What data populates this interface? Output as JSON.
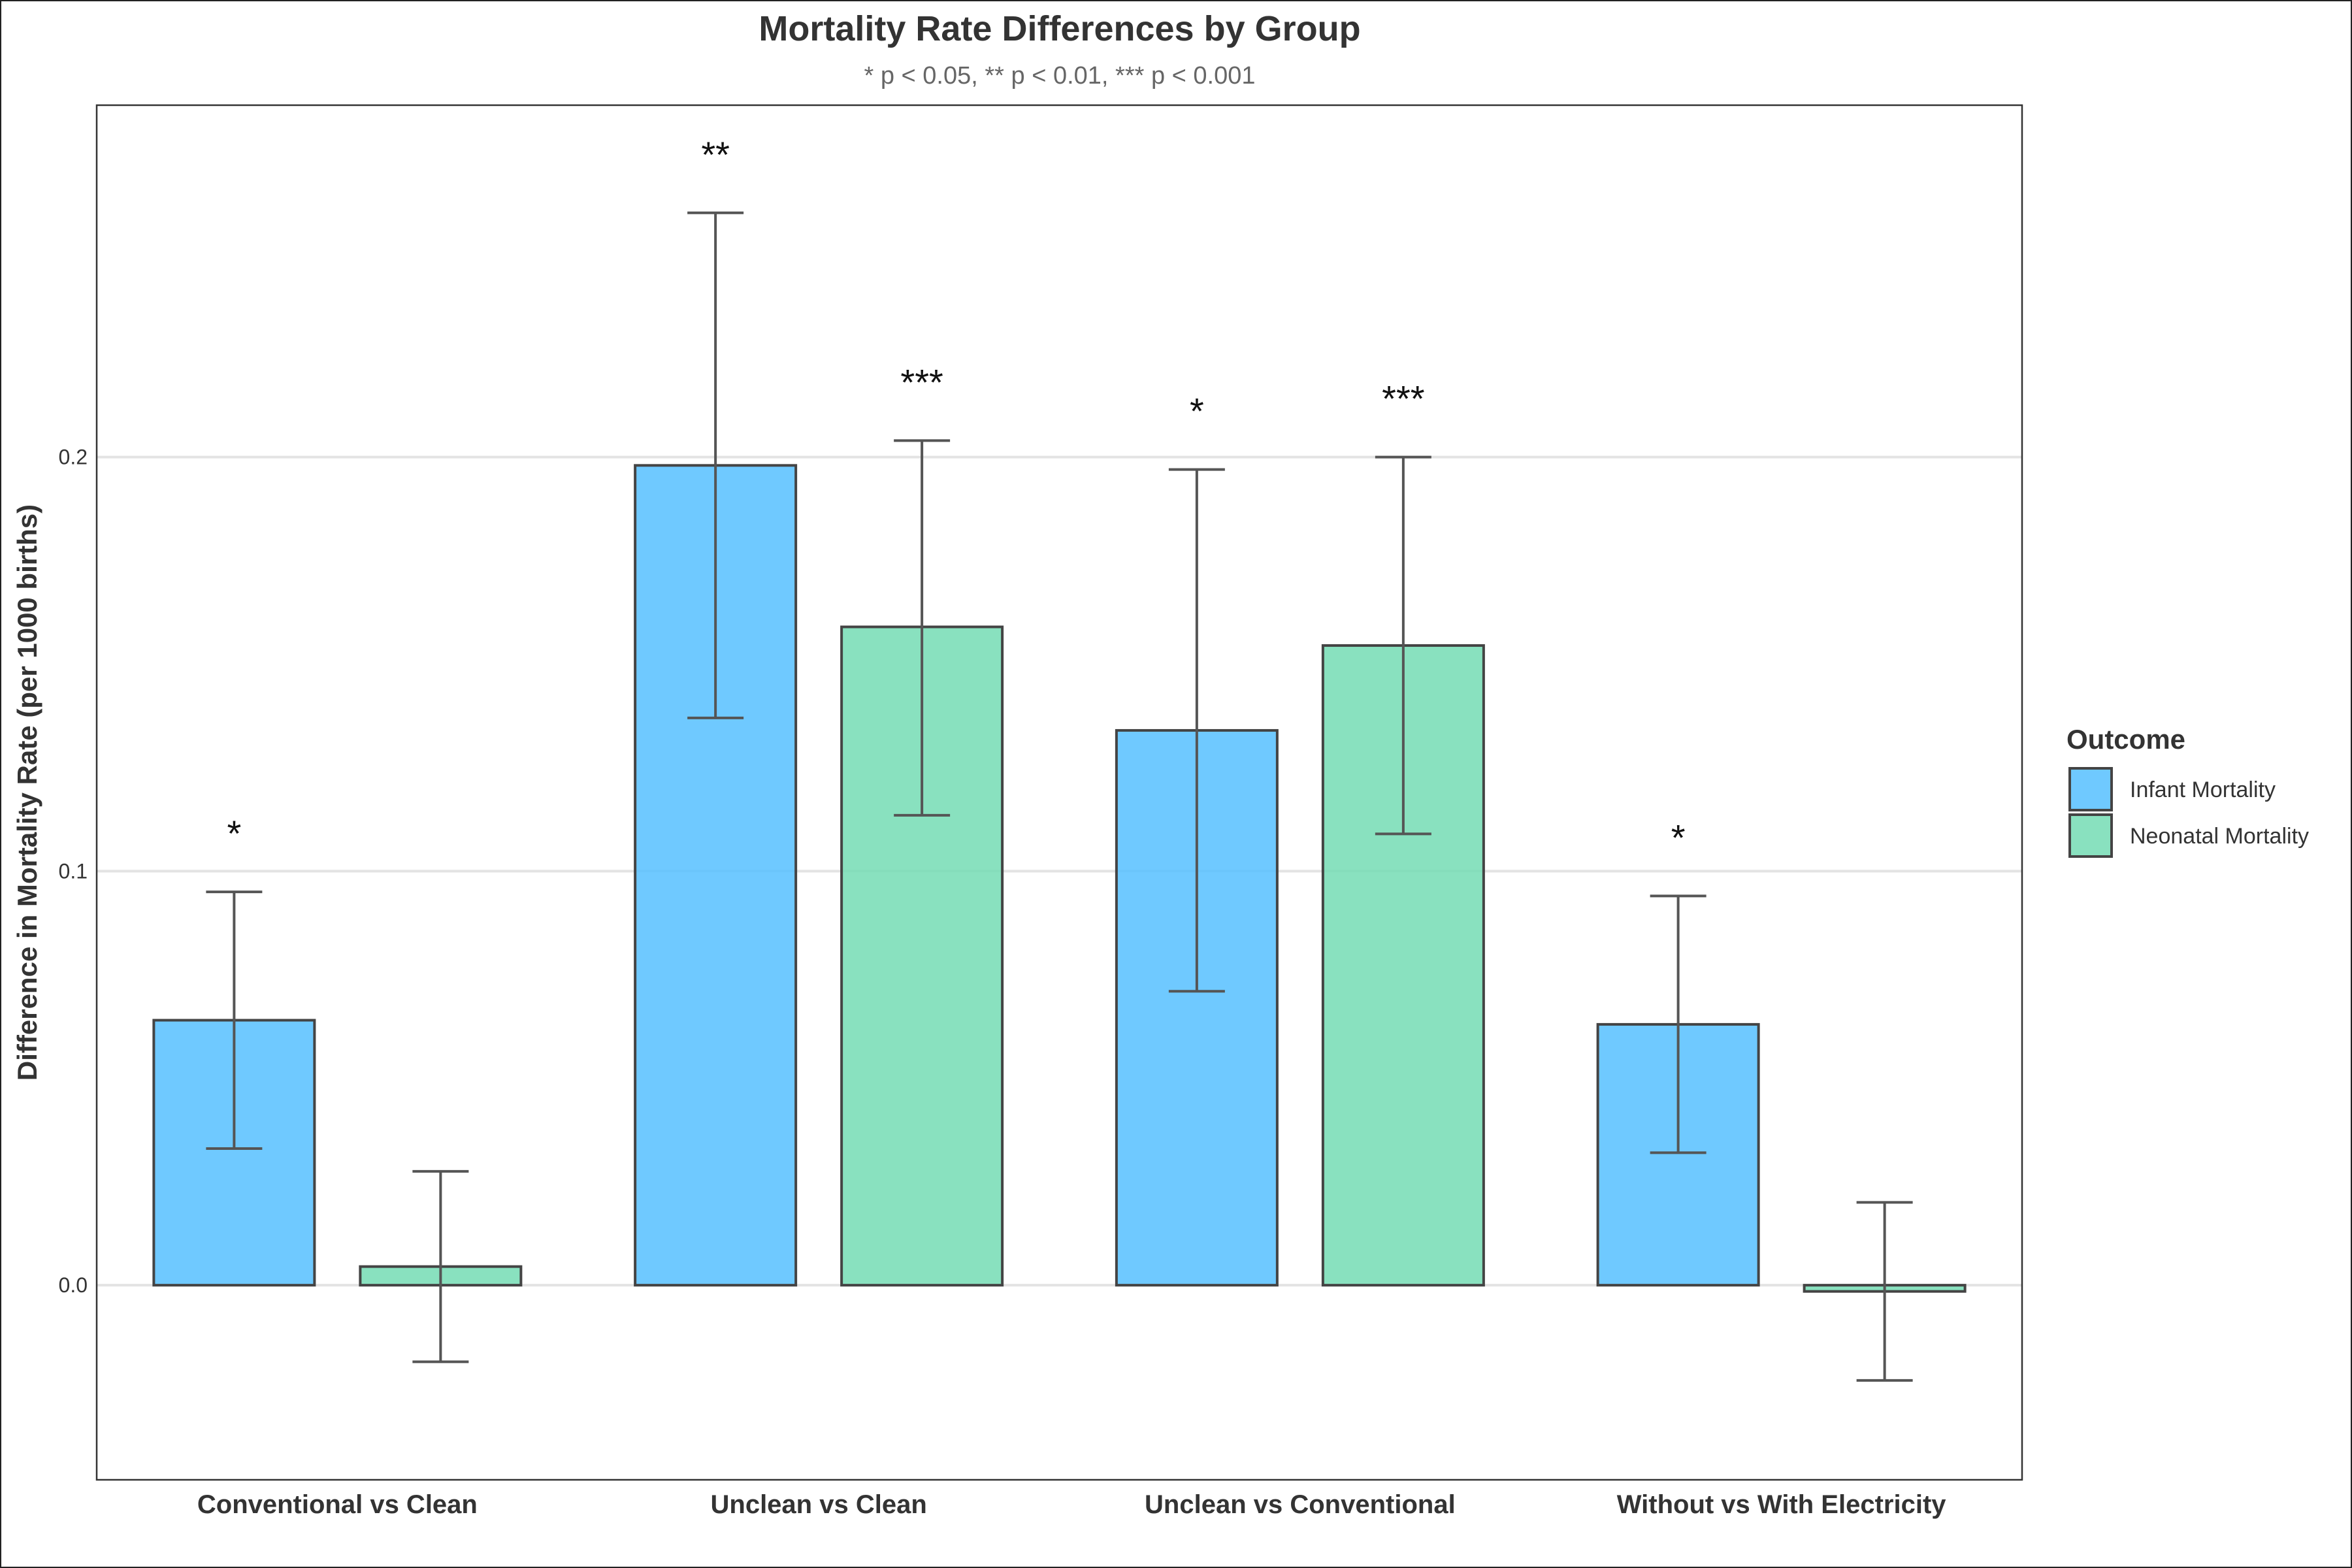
{
  "chart_data": {
    "type": "bar",
    "title": "Mortality Rate Differences by Group",
    "subtitle": "* p < 0.05, ** p < 0.01, *** p < 0.001",
    "xlabel": "",
    "ylabel": "Difference in Mortality Rate (per 1000 births)",
    "ylim": [
      -0.047,
      0.285
    ],
    "yticks": [
      0.0,
      0.1,
      0.2
    ],
    "ytick_labels": [
      "0.0",
      "0.1",
      "0.2"
    ],
    "grid": "horizontal",
    "legend": {
      "title": "Outcome",
      "position": "right"
    },
    "categories": [
      "Conventional vs Clean",
      "Unclean vs Clean",
      "Unclean vs Conventional",
      "Without vs With Electricity"
    ],
    "series": [
      {
        "name": "Infant Mortality",
        "color": "#56BFFF",
        "values": [
          0.064,
          0.198,
          0.134,
          0.063
        ],
        "ci_low": [
          0.033,
          0.137,
          0.071,
          0.032
        ],
        "ci_high": [
          0.095,
          0.259,
          0.197,
          0.094
        ],
        "significance": [
          "*",
          "**",
          "*",
          "*"
        ]
      },
      {
        "name": "Neonatal Mortality",
        "color": "#74DCB4",
        "values": [
          0.0045,
          0.159,
          0.1545,
          -0.0015
        ],
        "ci_low": [
          -0.0185,
          0.1135,
          0.109,
          -0.023
        ],
        "ci_high": [
          0.0275,
          0.204,
          0.2,
          0.02
        ],
        "significance": [
          "",
          "***",
          "***",
          ""
        ]
      }
    ]
  }
}
